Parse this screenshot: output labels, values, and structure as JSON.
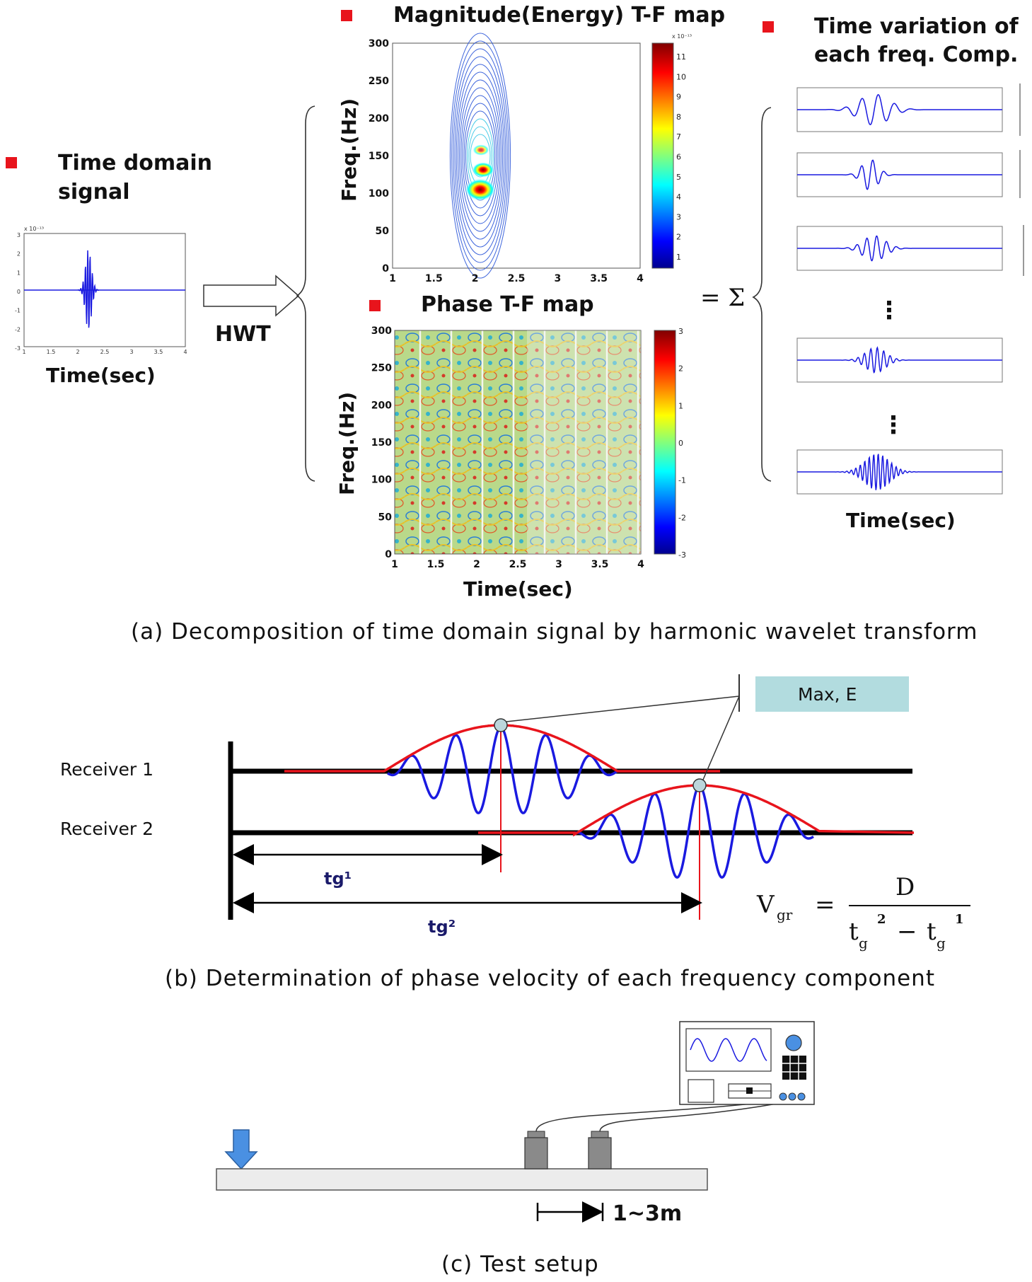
{
  "part_a": {
    "time_signal": {
      "heading_line1": "Time domain",
      "heading_line2": "signal",
      "exponent": "x 10⁻¹³",
      "y_ticks": [
        "3",
        "2",
        "1",
        "0",
        "-1",
        "-2",
        "-3"
      ],
      "x_ticks": [
        "1",
        "1.5",
        "2",
        "2.5",
        "3",
        "3.5",
        "4"
      ],
      "xlabel": "Time(sec)"
    },
    "transform_label": "HWT",
    "magnitude_map": {
      "heading": "Magnitude(Energy) T-F map",
      "ylabel": "Freq.(Hz)",
      "y_ticks": [
        "300",
        "250",
        "200",
        "150",
        "100",
        "50",
        "0"
      ],
      "x_ticks": [
        "1",
        "1.5",
        "2",
        "2.5",
        "3",
        "3.5",
        "4"
      ],
      "colorbar_exponent": "x 10⁻¹³",
      "colorbar_ticks": [
        "11",
        "10",
        "9",
        "8",
        "7",
        "6",
        "5",
        "4",
        "3",
        "2",
        "1"
      ]
    },
    "phase_map": {
      "heading": "Phase T-F map",
      "ylabel": "Freq.(Hz)",
      "y_ticks": [
        "300",
        "250",
        "200",
        "150",
        "100",
        "50",
        "0"
      ],
      "x_ticks": [
        "1",
        "1.5",
        "2",
        "2.5",
        "3",
        "3.5",
        "4"
      ],
      "xlabel": "Time(sec)",
      "colorbar_ticks": [
        "3",
        "2",
        "1",
        "0",
        "-1",
        "-2",
        "-3"
      ]
    },
    "components": {
      "heading_line1": "Time variation of",
      "heading_line2": "each freq. Comp.",
      "equals_sum": "= Σ",
      "xlabel": "Time(sec)"
    },
    "caption": "(a) Decomposition of time domain signal by harmonic wavelet transform"
  },
  "part_b": {
    "receiver1": "Receiver 1",
    "receiver2": "Receiver 2",
    "callout": "Max, E",
    "t1_label": "tg¹",
    "t2_label": "tg²",
    "formula": {
      "lhs": "V",
      "lhs_sub": "gr",
      "equals": "=",
      "numerator": "D",
      "t": "t",
      "g": "g",
      "sup2": "2",
      "minus": "−",
      "sup1": "1"
    },
    "caption": "(b) Determination of phase velocity of each frequency component"
  },
  "part_c": {
    "spacing": "1~3m",
    "caption": "(c) Test setup"
  },
  "colors": {
    "marker_red": "#e8141c",
    "wave_blue": "#1a1ae0",
    "envelope_red": "#e8141c",
    "callout_fill": "#b2dcdf",
    "impact_arrow": "#4a90e2"
  }
}
